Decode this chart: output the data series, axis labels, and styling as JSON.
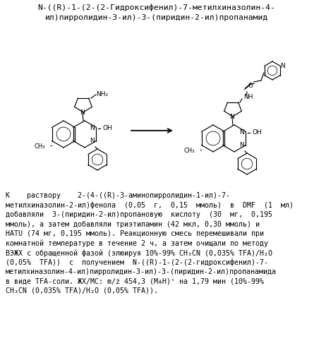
{
  "title_line1": "N-((R)-1-(2-(2-Гидроксифенил)-7-метилхиназолин-4-",
  "title_line2": "ил)пирролидин-3-ил)-3-(пиридин-2-ил)пропанамид",
  "bg_color": "#ffffff",
  "text_color": "#000000",
  "body_lines": [
    "К    раствору    2-(4-((R)-3-аминопирролидин-1-ил)-7-",
    "метилхиназолин-2-ил)фенола  (0,05  г,  0,15  ммоль)  в  DMF  (1  мл)",
    "добавляли  3-(пиридин-2-ил)пропановую  кислоту  (30  мг,  0,195",
    "ммоль), а затем добавляли триэтиламин (42 мкл, 0,30 ммоль) и",
    "HATU (74 мг, 0,195 ммоль). Реакционную смесь перемешивали при",
    "комнатной температуре в течение 2 ч, а затем очищали по методу",
    "ВЭЖХ с обращенной фазой (элюируя 10%-99% CH₃CN (0,035% TFA)/H₂O",
    "(0,05%  TFA))  с  получением  N-((R)-1-(2-(2-гидроксифенил)-7-",
    "метилхиназолин-4-ил)пирролидин-3-ил)-3-(пиридин-2-ил)пропанамида",
    "в виде TFA-соли. ЖХ/МС: m/z 454,3 (M+H)⁺ на 1,79 мин (10%-99%",
    "CH₃CN (0,035% TFA)/H₂O (0,05% TFA))."
  ]
}
